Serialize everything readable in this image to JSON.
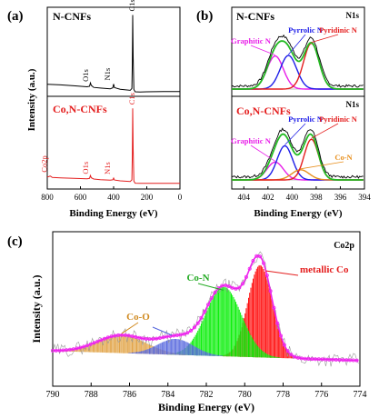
{
  "panels": {
    "a": {
      "label": "(a)",
      "xlabel": "Binding Energy (eV)",
      "ylabel": "Intensity (a.u.)",
      "xticks": [
        "800",
        "600",
        "400",
        "200",
        "0"
      ]
    },
    "b": {
      "label": "(b)",
      "xlabel": "Binding Energy (eV)",
      "xticks": [
        "404",
        "402",
        "400",
        "398",
        "396",
        "394"
      ]
    },
    "c": {
      "label": "(c)",
      "xlabel": "Binding Energy (eV)",
      "ylabel": "Intensity (a.u.)",
      "xticks": [
        "790",
        "788",
        "786",
        "784",
        "782",
        "780",
        "778",
        "776",
        "774"
      ]
    }
  },
  "colors": {
    "ncnf": "#000000",
    "cocnf": "#e41e1e",
    "graphitic": "#e81ee8",
    "pyrrolic": "#1e1ee8",
    "pyridinic": "#e41e1e",
    "con": "#e8901e",
    "envelope": "#22bb22",
    "co_metal": "#ff0000",
    "co_n": "#00ee00",
    "co_o": "#e0a040",
    "co_sat": "#5566dd",
    "fit": "#ee22ee"
  },
  "chart_data": [
    {
      "panel": "a",
      "type": "line",
      "xlabel": "Binding Energy (eV)",
      "ylabel": "Intensity (a.u.)",
      "xlim": [
        800,
        0
      ],
      "series": [
        {
          "name": "N-CNFs",
          "x": [
            800,
            720,
            640,
            560,
            545,
            540,
            535,
            520,
            480,
            420,
            405,
            400,
            395,
            360,
            300,
            290,
            287,
            285,
            282,
            278,
            270,
            240,
            200,
            100,
            0
          ],
          "y": [
            4.5,
            4.2,
            3.8,
            3.3,
            3.5,
            5.2,
            4.0,
            3.0,
            2.7,
            2.3,
            2.8,
            4.6,
            2.9,
            2.1,
            1.6,
            2.5,
            15,
            38,
            18,
            2.0,
            0.9,
            0.8,
            0.9,
            1.0,
            1.0
          ],
          "annotations": [
            {
              "text": "O1s",
              "x": 532
            },
            {
              "text": "N1s",
              "x": 400
            },
            {
              "text": "C1s",
              "x": 285
            }
          ]
        },
        {
          "name": "Co,N-CNFs",
          "x": [
            800,
            790,
            783,
            778,
            770,
            720,
            640,
            560,
            545,
            540,
            535,
            520,
            480,
            420,
            405,
            400,
            395,
            360,
            300,
            290,
            287,
            285,
            282,
            278,
            270,
            240,
            200,
            100,
            0
          ],
          "y": [
            3.6,
            3.7,
            4.0,
            3.8,
            3.3,
            3.1,
            2.9,
            2.7,
            2.9,
            4.2,
            3.2,
            2.6,
            2.3,
            2.0,
            2.2,
            3.0,
            2.1,
            1.7,
            1.4,
            2.2,
            14,
            36,
            17,
            1.6,
            0.6,
            0.5,
            0.5,
            0.5,
            0.5
          ],
          "annotations": [
            {
              "text": "Co2p",
              "x": 780
            },
            {
              "text": "O1s",
              "x": 532
            },
            {
              "text": "N1s",
              "x": 400
            },
            {
              "text": "C1s",
              "x": 285
            }
          ]
        }
      ]
    },
    {
      "panel": "b-top",
      "type": "line",
      "title": "N-CNFs",
      "tag": "N1s",
      "xlim": [
        405,
        394
      ],
      "peaks": [
        {
          "name": "Graphitic N",
          "center": 401.4,
          "height": 6.5,
          "fwhm": 1.6
        },
        {
          "name": "Pyrrolic N",
          "center": 400.3,
          "height": 6.6,
          "fwhm": 1.6
        },
        {
          "name": "Pyridinic N",
          "center": 398.4,
          "height": 9.0,
          "fwhm": 1.5
        }
      ]
    },
    {
      "panel": "b-bottom",
      "type": "line",
      "title": "Co,N-CNFs",
      "tag": "N1s",
      "xlim": [
        405,
        394
      ],
      "peaks": [
        {
          "name": "Graphitic N",
          "center": 401.4,
          "height": 3.5,
          "fwhm": 1.6
        },
        {
          "name": "Pyrrolic N",
          "center": 400.6,
          "height": 6.7,
          "fwhm": 1.5
        },
        {
          "name": "Co-N",
          "center": 399.3,
          "height": 2.0,
          "fwhm": 1.7
        },
        {
          "name": "Pyridinic N",
          "center": 398.4,
          "height": 8.0,
          "fwhm": 1.4
        }
      ]
    },
    {
      "panel": "c",
      "type": "area",
      "tag": "Co2p",
      "xlabel": "Binding Energy (eV)",
      "ylabel": "Intensity (a.u.)",
      "xlim": [
        790,
        774
      ],
      "peaks": [
        {
          "name": "metallic Co",
          "center": 779.2,
          "height": 9.3,
          "fwhm": 1.5
        },
        {
          "name": "Co-N",
          "center": 781.1,
          "height": 7.0,
          "fwhm": 2.2
        },
        {
          "name": "Co-O",
          "center": 786.4,
          "height": 1.8,
          "fwhm": 3.0
        },
        {
          "name": "",
          "center": 783.6,
          "height": 1.6,
          "fwhm": 2.2
        }
      ]
    }
  ]
}
